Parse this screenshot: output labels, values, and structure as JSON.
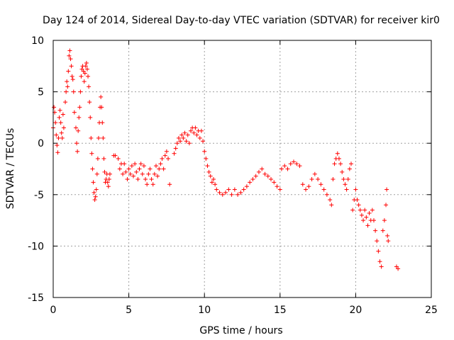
{
  "chart_data": {
    "type": "scatter",
    "title": "Day 124 of 2014, Sidereal Day-to-day VTEC variation (SDTVAR) for receiver kir0",
    "xlabel": "GPS time / hours",
    "ylabel": "SDTVAR / TECUs",
    "xlim": [
      0,
      25
    ],
    "ylim": [
      -15,
      10
    ],
    "xticks": [
      0,
      5,
      10,
      15,
      20,
      25
    ],
    "yticks": [
      -15,
      -10,
      -5,
      0,
      5,
      10
    ],
    "grid": true,
    "marker": "+",
    "marker_color": "#ff0000",
    "series": [
      {
        "name": "SDTVAR",
        "points": [
          [
            0.0,
            1.5
          ],
          [
            0.05,
            3.5
          ],
          [
            0.1,
            3.0
          ],
          [
            0.15,
            2.0
          ],
          [
            0.2,
            0.8
          ],
          [
            0.25,
            -0.2
          ],
          [
            0.3,
            -0.9
          ],
          [
            0.35,
            0.5
          ],
          [
            0.4,
            2.5
          ],
          [
            0.45,
            3.2
          ],
          [
            0.5,
            2.0
          ],
          [
            0.55,
            1.0
          ],
          [
            0.6,
            0.5
          ],
          [
            0.65,
            2.8
          ],
          [
            0.7,
            1.5
          ],
          [
            0.8,
            4.0
          ],
          [
            0.85,
            5.0
          ],
          [
            0.9,
            6.0
          ],
          [
            0.95,
            5.5
          ],
          [
            1.0,
            7.0
          ],
          [
            1.05,
            8.5
          ],
          [
            1.1,
            9.0
          ],
          [
            1.15,
            8.2
          ],
          [
            1.2,
            7.5
          ],
          [
            1.25,
            6.5
          ],
          [
            1.3,
            6.2
          ],
          [
            1.35,
            5.0
          ],
          [
            1.4,
            3.0
          ],
          [
            1.5,
            1.5
          ],
          [
            1.55,
            0.0
          ],
          [
            1.6,
            -0.8
          ],
          [
            1.65,
            1.2
          ],
          [
            1.7,
            2.5
          ],
          [
            1.75,
            3.5
          ],
          [
            1.8,
            5.0
          ],
          [
            1.85,
            6.5
          ],
          [
            1.9,
            7.2
          ],
          [
            1.95,
            7.5
          ],
          [
            2.0,
            7.0
          ],
          [
            2.05,
            6.0
          ],
          [
            2.1,
            6.8
          ],
          [
            2.15,
            7.5
          ],
          [
            2.2,
            7.8
          ],
          [
            2.25,
            7.2
          ],
          [
            2.3,
            6.5
          ],
          [
            2.35,
            5.5
          ],
          [
            2.4,
            4.0
          ],
          [
            2.45,
            2.5
          ],
          [
            2.5,
            0.5
          ],
          [
            2.55,
            -1.0
          ],
          [
            2.6,
            -2.5
          ],
          [
            2.65,
            -3.8
          ],
          [
            2.7,
            -4.8
          ],
          [
            2.75,
            -5.5
          ],
          [
            2.8,
            -5.2
          ],
          [
            2.85,
            -4.5
          ],
          [
            2.9,
            -3.0
          ],
          [
            2.95,
            -1.5
          ],
          [
            3.0,
            0.5
          ],
          [
            3.05,
            2.0
          ],
          [
            3.1,
            3.5
          ],
          [
            3.15,
            4.5
          ],
          [
            3.2,
            3.5
          ],
          [
            3.25,
            2.0
          ],
          [
            3.3,
            0.5
          ],
          [
            3.35,
            -1.5
          ],
          [
            3.4,
            -2.8
          ],
          [
            3.45,
            -3.8
          ],
          [
            3.5,
            -3.5
          ],
          [
            3.55,
            -3.0
          ],
          [
            3.6,
            -3.8
          ],
          [
            3.65,
            -4.2
          ],
          [
            3.7,
            -3.5
          ],
          [
            3.75,
            -3.0
          ],
          [
            4.0,
            -1.2
          ],
          [
            4.1,
            -1.2
          ],
          [
            4.3,
            -1.5
          ],
          [
            4.4,
            -2.5
          ],
          [
            4.5,
            -2.0
          ],
          [
            4.6,
            -3.0
          ],
          [
            4.7,
            -2.0
          ],
          [
            4.8,
            -2.8
          ],
          [
            4.9,
            -3.5
          ],
          [
            5.0,
            -2.5
          ],
          [
            5.1,
            -3.0
          ],
          [
            5.2,
            -2.2
          ],
          [
            5.3,
            -3.2
          ],
          [
            5.4,
            -2.0
          ],
          [
            5.5,
            -2.8
          ],
          [
            5.6,
            -3.5
          ],
          [
            5.7,
            -2.5
          ],
          [
            5.8,
            -2.0
          ],
          [
            5.9,
            -3.0
          ],
          [
            6.0,
            -2.2
          ],
          [
            6.1,
            -3.5
          ],
          [
            6.2,
            -4.0
          ],
          [
            6.3,
            -3.0
          ],
          [
            6.4,
            -2.5
          ],
          [
            6.5,
            -3.5
          ],
          [
            6.6,
            -4.0
          ],
          [
            6.7,
            -3.0
          ],
          [
            6.8,
            -2.2
          ],
          [
            6.9,
            -3.2
          ],
          [
            7.0,
            -2.5
          ],
          [
            7.1,
            -2.0
          ],
          [
            7.2,
            -1.5
          ],
          [
            7.3,
            -2.5
          ],
          [
            7.4,
            -1.2
          ],
          [
            7.5,
            -0.8
          ],
          [
            7.6,
            -1.5
          ],
          [
            7.7,
            -4.0
          ],
          [
            8.0,
            -1.0
          ],
          [
            8.1,
            -0.5
          ],
          [
            8.2,
            0.0
          ],
          [
            8.3,
            0.5
          ],
          [
            8.4,
            0.2
          ],
          [
            8.5,
            0.8
          ],
          [
            8.6,
            0.5
          ],
          [
            8.7,
            1.0
          ],
          [
            8.8,
            0.2
          ],
          [
            8.9,
            0.8
          ],
          [
            9.0,
            0.0
          ],
          [
            9.1,
            1.2
          ],
          [
            9.2,
            1.5
          ],
          [
            9.3,
            1.0
          ],
          [
            9.4,
            1.5
          ],
          [
            9.5,
            0.8
          ],
          [
            9.6,
            1.2
          ],
          [
            9.7,
            0.5
          ],
          [
            9.8,
            1.2
          ],
          [
            9.9,
            0.2
          ],
          [
            10.0,
            -0.8
          ],
          [
            10.1,
            -1.5
          ],
          [
            10.2,
            -2.2
          ],
          [
            10.3,
            -2.8
          ],
          [
            10.4,
            -3.2
          ],
          [
            10.5,
            -3.8
          ],
          [
            10.6,
            -3.5
          ],
          [
            10.7,
            -4.0
          ],
          [
            10.8,
            -4.5
          ],
          [
            11.0,
            -4.8
          ],
          [
            11.2,
            -5.0
          ],
          [
            11.4,
            -4.8
          ],
          [
            11.6,
            -4.5
          ],
          [
            11.8,
            -5.0
          ],
          [
            12.0,
            -4.5
          ],
          [
            12.2,
            -5.0
          ],
          [
            12.4,
            -4.8
          ],
          [
            12.6,
            -4.5
          ],
          [
            12.8,
            -4.2
          ],
          [
            13.0,
            -3.8
          ],
          [
            13.2,
            -3.5
          ],
          [
            13.4,
            -3.2
          ],
          [
            13.6,
            -2.8
          ],
          [
            13.8,
            -2.5
          ],
          [
            14.0,
            -3.0
          ],
          [
            14.2,
            -3.2
          ],
          [
            14.4,
            -3.5
          ],
          [
            14.6,
            -3.8
          ],
          [
            14.8,
            -4.2
          ],
          [
            15.0,
            -4.5
          ],
          [
            15.1,
            -2.5
          ],
          [
            15.3,
            -2.2
          ],
          [
            15.5,
            -2.5
          ],
          [
            15.7,
            -2.0
          ],
          [
            15.9,
            -1.8
          ],
          [
            16.1,
            -2.0
          ],
          [
            16.3,
            -2.2
          ],
          [
            16.5,
            -4.0
          ],
          [
            16.7,
            -4.5
          ],
          [
            16.9,
            -4.2
          ],
          [
            17.1,
            -3.5
          ],
          [
            17.3,
            -3.0
          ],
          [
            17.5,
            -3.5
          ],
          [
            17.7,
            -4.0
          ],
          [
            17.9,
            -4.5
          ],
          [
            18.1,
            -5.0
          ],
          [
            18.3,
            -5.5
          ],
          [
            18.4,
            -6.0
          ],
          [
            18.5,
            -3.5
          ],
          [
            18.6,
            -2.0
          ],
          [
            18.7,
            -1.5
          ],
          [
            18.8,
            -1.0
          ],
          [
            18.9,
            -1.5
          ],
          [
            19.0,
            -2.0
          ],
          [
            19.1,
            -2.8
          ],
          [
            19.2,
            -3.5
          ],
          [
            19.3,
            -4.0
          ],
          [
            19.4,
            -4.5
          ],
          [
            19.5,
            -3.5
          ],
          [
            19.6,
            -2.5
          ],
          [
            19.7,
            -2.0
          ],
          [
            19.8,
            -6.5
          ],
          [
            19.9,
            -5.5
          ],
          [
            20.0,
            -4.5
          ],
          [
            20.1,
            -5.5
          ],
          [
            20.2,
            -6.0
          ],
          [
            20.3,
            -6.5
          ],
          [
            20.4,
            -7.0
          ],
          [
            20.5,
            -7.5
          ],
          [
            20.6,
            -6.5
          ],
          [
            20.7,
            -7.2
          ],
          [
            20.8,
            -8.0
          ],
          [
            20.9,
            -6.8
          ],
          [
            21.0,
            -7.5
          ],
          [
            21.1,
            -6.5
          ],
          [
            21.2,
            -7.5
          ],
          [
            21.3,
            -8.5
          ],
          [
            21.4,
            -9.5
          ],
          [
            21.5,
            -10.5
          ],
          [
            21.6,
            -11.5
          ],
          [
            21.7,
            -12.0
          ],
          [
            21.8,
            -8.5
          ],
          [
            21.9,
            -7.5
          ],
          [
            22.0,
            -6.0
          ],
          [
            22.05,
            -4.5
          ],
          [
            22.1,
            -9.0
          ],
          [
            22.15,
            -9.5
          ],
          [
            22.7,
            -12.0
          ],
          [
            22.8,
            -12.2
          ]
        ]
      }
    ]
  }
}
